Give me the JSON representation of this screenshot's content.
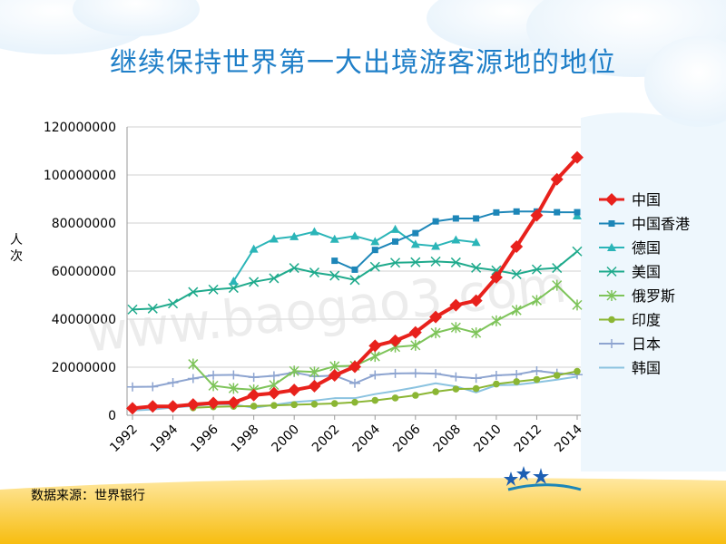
{
  "slide": {
    "title": "继续保持世界第一大出境游客源地的地位",
    "source": "数据来源：世界银行",
    "watermark": "www.baogao3.com"
  },
  "colors": {
    "title": "#1f7fc8",
    "band_top": "#fde08a",
    "band_bottom": "#f7b900"
  },
  "chart_data": {
    "type": "line",
    "ylabel": "人次",
    "ylim": [
      0,
      120000000
    ],
    "yticks": [
      0,
      20000000,
      40000000,
      60000000,
      80000000,
      100000000,
      120000000
    ],
    "ytick_labels": [
      "0",
      "20000000",
      "40000000",
      "60000000",
      "80000000",
      "100000000",
      "120000000"
    ],
    "xlim": [
      1992,
      2014
    ],
    "xticks": [
      1992,
      1994,
      1996,
      1998,
      2000,
      2002,
      2004,
      2006,
      2008,
      2010,
      2012,
      2014
    ],
    "xtick_labels": [
      "1992",
      "1994",
      "1996",
      "1998",
      "2000",
      "2002",
      "2004",
      "2006",
      "2008",
      "2010",
      "2012",
      "2014"
    ],
    "grid": "horizontal",
    "legend": "right",
    "series": [
      {
        "name": "中国",
        "color": "#e8211c",
        "marker": "diamond",
        "width": 4,
        "x": [
          1992,
          1993,
          1994,
          1995,
          1996,
          1997,
          1998,
          1999,
          2000,
          2001,
          2002,
          2003,
          2004,
          2005,
          2006,
          2007,
          2008,
          2009,
          2010,
          2011,
          2012,
          2013,
          2014
        ],
        "values": [
          2900000,
          3700000,
          3700000,
          4500000,
          5100000,
          5300000,
          8400000,
          9200000,
          10500000,
          12100000,
          16600000,
          20200000,
          28900000,
          31000000,
          34500000,
          40900000,
          45800000,
          47700000,
          57400000,
          70200000,
          83200000,
          98200000,
          107300000
        ]
      },
      {
        "name": "中国香港",
        "color": "#1d86b8",
        "marker": "square",
        "width": 2,
        "x": [
          2002,
          2003,
          2004,
          2005,
          2006,
          2007,
          2008,
          2009,
          2010,
          2011,
          2012,
          2013,
          2014
        ],
        "values": [
          64300000,
          60600000,
          68800000,
          72300000,
          75800000,
          80700000,
          81900000,
          81900000,
          84400000,
          84800000,
          84800000,
          84500000,
          84500000
        ]
      },
      {
        "name": "德国",
        "color": "#2bb5b8",
        "marker": "triangle",
        "width": 2,
        "x": [
          1997,
          1998,
          1999,
          2000,
          2001,
          2002,
          2003,
          2004,
          2005,
          2006,
          2007,
          2008,
          2009,
          null,
          2014
        ],
        "values": [
          55800000,
          69200000,
          73400000,
          74400000,
          76400000,
          73300000,
          74600000,
          72300000,
          77400000,
          71200000,
          70400000,
          73000000,
          72000000,
          null,
          83000000
        ]
      },
      {
        "name": "美国",
        "color": "#1faa8c",
        "marker": "x",
        "width": 2,
        "x": [
          1992,
          1993,
          1994,
          1995,
          1996,
          1997,
          1998,
          1999,
          2000,
          2001,
          2002,
          2003,
          2004,
          2005,
          2006,
          2007,
          2008,
          2009,
          2010,
          2011,
          2012,
          2013,
          2014
        ],
        "values": [
          44000000,
          44400000,
          46500000,
          51300000,
          52300000,
          53000000,
          55500000,
          57000000,
          61300000,
          59400000,
          58100000,
          56300000,
          61800000,
          63500000,
          63700000,
          64000000,
          63600000,
          61400000,
          60300000,
          58700000,
          60700000,
          61300000,
          68200000
        ]
      },
      {
        "name": "俄罗斯",
        "color": "#7ec45a",
        "marker": "star",
        "width": 2,
        "x": [
          1995,
          1996,
          1997,
          1998,
          1999,
          2000,
          2001,
          2002,
          2003,
          2004,
          2005,
          2006,
          2007,
          2008,
          2009,
          2010,
          2011,
          2012,
          2013,
          2014
        ],
        "values": [
          21300000,
          12300000,
          11200000,
          10600000,
          12600000,
          18400000,
          18000000,
          20400000,
          20600000,
          24500000,
          28400000,
          29100000,
          34300000,
          36500000,
          34300000,
          39300000,
          43700000,
          47800000,
          54100000,
          45900000
        ]
      },
      {
        "name": "印度",
        "color": "#8bb634",
        "marker": "circle",
        "width": 2,
        "x": [
          1995,
          1996,
          1997,
          1998,
          1999,
          2000,
          2001,
          2002,
          2003,
          2004,
          2005,
          2006,
          2007,
          2008,
          2009,
          2010,
          2011,
          2012,
          2013,
          2014
        ],
        "values": [
          3100000,
          3500000,
          3700000,
          3800000,
          4100000,
          4400000,
          4600000,
          4900000,
          5400000,
          6200000,
          7200000,
          8300000,
          9800000,
          10900000,
          11100000,
          13000000,
          14000000,
          14900000,
          16600000,
          18300000
        ]
      },
      {
        "name": "日本",
        "color": "#8da4d0",
        "marker": "plus",
        "width": 2,
        "x": [
          1992,
          1993,
          1994,
          1995,
          1996,
          1997,
          1998,
          1999,
          2000,
          2001,
          2002,
          2003,
          2004,
          2005,
          2006,
          2007,
          2008,
          2009,
          2010,
          2011,
          2012,
          2013,
          2014
        ],
        "values": [
          11800000,
          11900000,
          13600000,
          15300000,
          16700000,
          16800000,
          15800000,
          16400000,
          17800000,
          16200000,
          16500000,
          13300000,
          16800000,
          17400000,
          17500000,
          17300000,
          16000000,
          15400000,
          16600000,
          17000000,
          18500000,
          17500000,
          16900000
        ]
      },
      {
        "name": "韩国",
        "color": "#8bc3e0",
        "marker": "none",
        "width": 2,
        "x": [
          1992,
          1993,
          1994,
          1995,
          1996,
          1997,
          1998,
          1999,
          2000,
          2001,
          2002,
          2003,
          2004,
          2005,
          2006,
          2007,
          2008,
          2009,
          2010,
          2011,
          2012,
          2013,
          2014
        ],
        "values": [
          2000000,
          2400000,
          3200000,
          3800000,
          4600000,
          4500000,
          3100000,
          4300000,
          5500000,
          6100000,
          7100000,
          7100000,
          8800000,
          10100000,
          11600000,
          13300000,
          12000000,
          9500000,
          12500000,
          12700000,
          13700000,
          14800000,
          16100000
        ]
      }
    ]
  }
}
